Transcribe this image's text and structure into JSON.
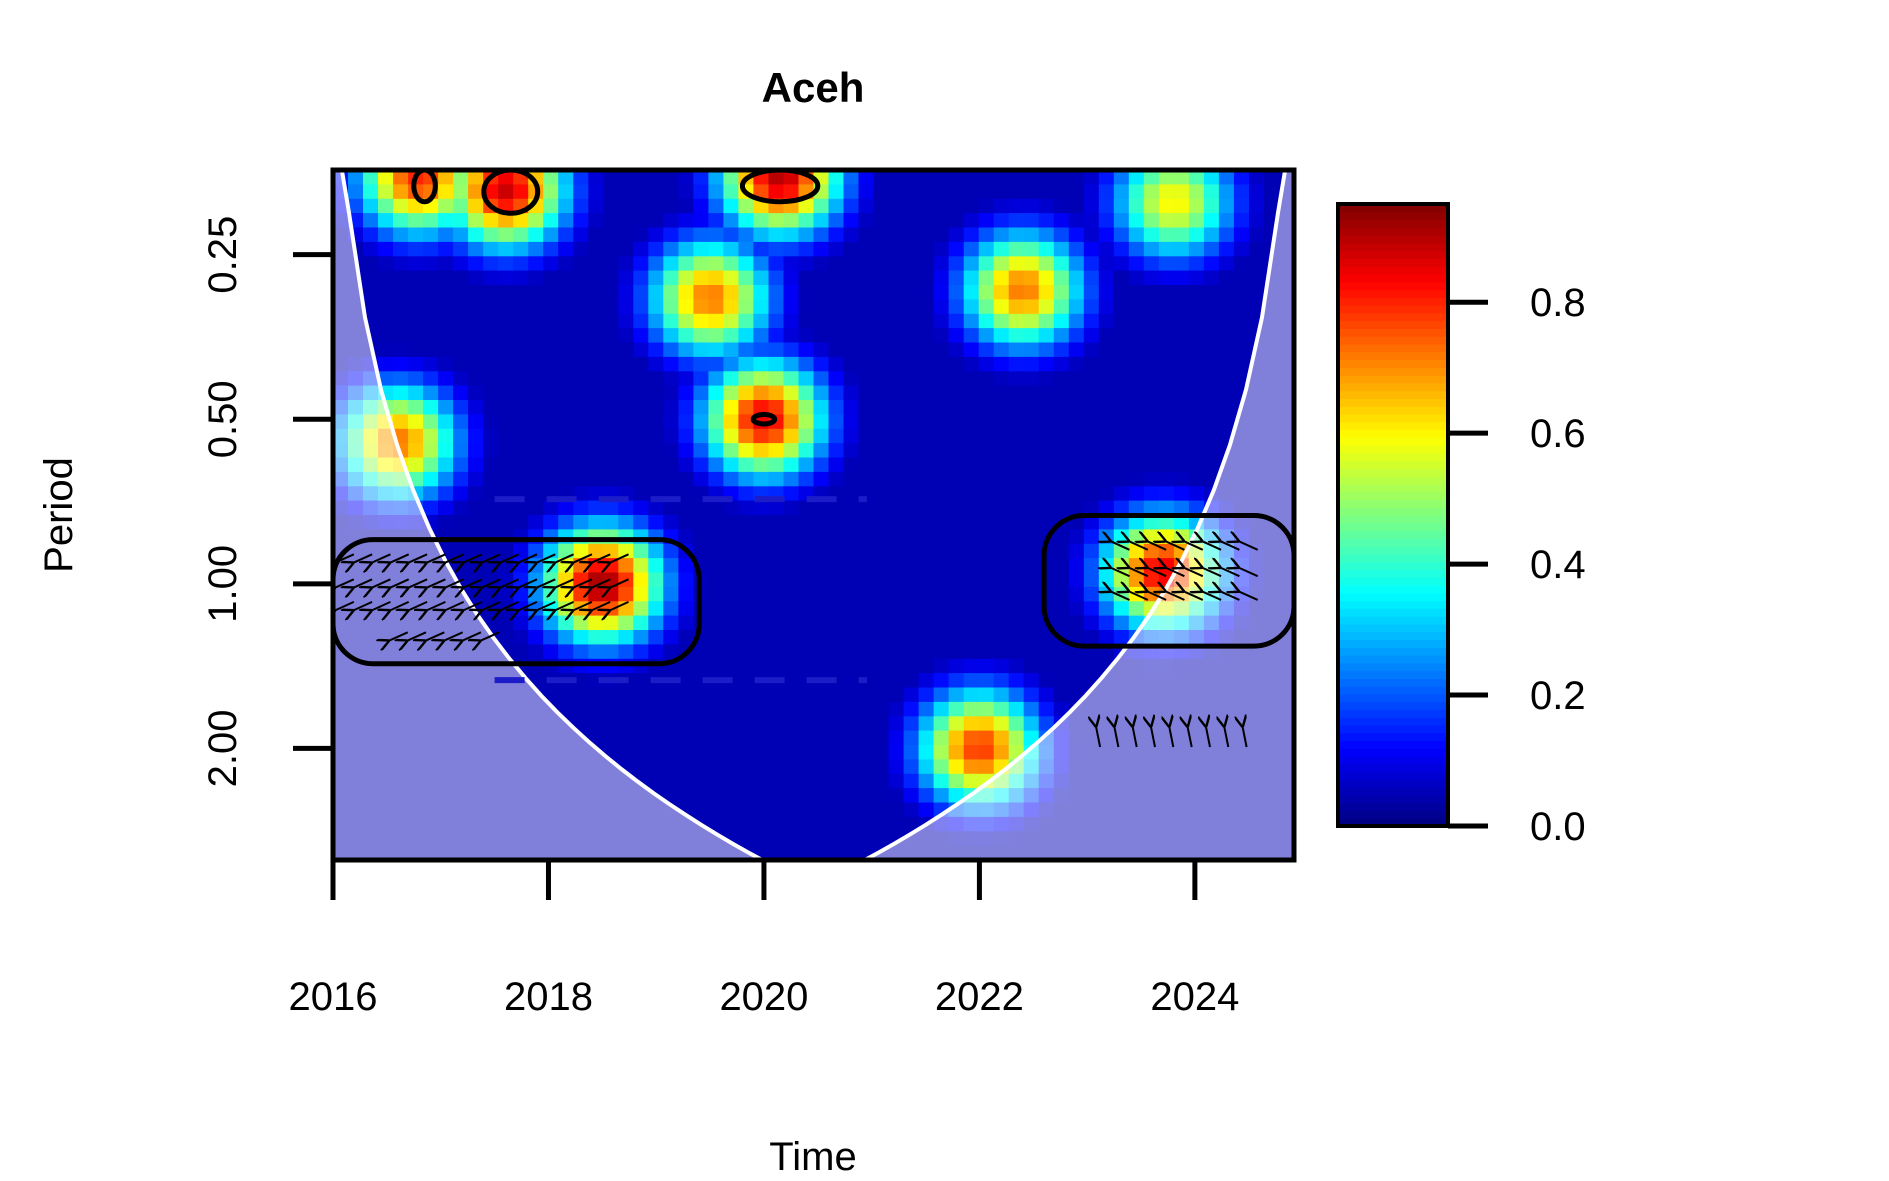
{
  "chart_data": {
    "type": "heatmap",
    "title": "Aceh",
    "xlabel": "Time",
    "ylabel": "Period",
    "x_ticks": [
      2016,
      2018,
      2020,
      2022,
      2024
    ],
    "x_tick_labels": [
      "2016",
      "2018",
      "2020",
      "2022",
      "2024"
    ],
    "xlim": [
      2016,
      2024.92
    ],
    "y_scale": "log2",
    "y_ticks": [
      0.25,
      0.5,
      1,
      2
    ],
    "y_tick_labels": [
      "0.25",
      "0.50",
      "1.00",
      "2.00"
    ],
    "ylim": [
      0.175,
      3.2
    ],
    "y_reversed": true,
    "colorbar": {
      "range": [
        0,
        0.95
      ],
      "ticks": [
        0,
        0.2,
        0.4,
        0.6,
        0.8
      ],
      "tick_labels": [
        "0.0",
        "0.2",
        "0.4",
        "0.6",
        "0.8"
      ],
      "palette": [
        "#00007f",
        "#0000ff",
        "#007fff",
        "#00ffff",
        "#7fff7f",
        "#ffff00",
        "#ff7f00",
        "#ff0000",
        "#7f0000"
      ]
    },
    "hotspots": [
      {
        "x": 2018.5,
        "period": 1.0,
        "power": 0.92
      },
      {
        "x": 2023.7,
        "period": 0.95,
        "power": 0.85
      },
      {
        "x": 2020.0,
        "period": 0.5,
        "power": 0.85
      },
      {
        "x": 2020.15,
        "period": 0.18,
        "power": 0.9
      },
      {
        "x": 2017.6,
        "period": 0.19,
        "power": 0.88
      },
      {
        "x": 2016.8,
        "period": 0.18,
        "power": 0.8
      },
      {
        "x": 2019.5,
        "period": 0.3,
        "power": 0.72
      },
      {
        "x": 2022.4,
        "period": 0.29,
        "power": 0.72
      },
      {
        "x": 2022.0,
        "period": 2.0,
        "power": 0.78
      },
      {
        "x": 2016.6,
        "period": 0.55,
        "power": 0.72
      },
      {
        "x": 2023.8,
        "period": 0.2,
        "power": 0.6
      }
    ],
    "significance_regions": [
      {
        "x_range": [
          2016,
          2019.4
        ],
        "period_range": [
          0.83,
          1.4
        ]
      },
      {
        "x_range": [
          2022.6,
          2024.92
        ],
        "period_range": [
          0.75,
          1.3
        ]
      },
      {
        "x_range": [
          2016.75,
          2016.95
        ],
        "period_range": [
          0.175,
          0.2
        ]
      },
      {
        "x_range": [
          2017.4,
          2017.9
        ],
        "period_range": [
          0.175,
          0.21
        ]
      },
      {
        "x_range": [
          2019.8,
          2020.5
        ],
        "period_range": [
          0.175,
          0.2
        ]
      },
      {
        "x_range": [
          2019.9,
          2020.1
        ],
        "period_range": [
          0.49,
          0.51
        ]
      }
    ],
    "max_power_band": {
      "x_range": [
        2017.5,
        2019.1
      ],
      "period_range": [
        0.7,
        1.5
      ]
    },
    "phase_arrows": [
      {
        "x_range": [
          2016.1,
          2018.8
        ],
        "periods": [
          0.9,
          1.0,
          1.1
        ],
        "direction": "left-down"
      },
      {
        "x_range": [
          2016.6,
          2017.6
        ],
        "periods": [
          1.25
        ],
        "direction": "left-down"
      },
      {
        "x_range": [
          2023.3,
          2024.6
        ],
        "periods": [
          0.85,
          0.95,
          1.05
        ],
        "direction": "left-up"
      },
      {
        "x_range": [
          2023.1,
          2024.5
        ],
        "periods": [
          1.9
        ],
        "direction": "up"
      }
    ]
  }
}
